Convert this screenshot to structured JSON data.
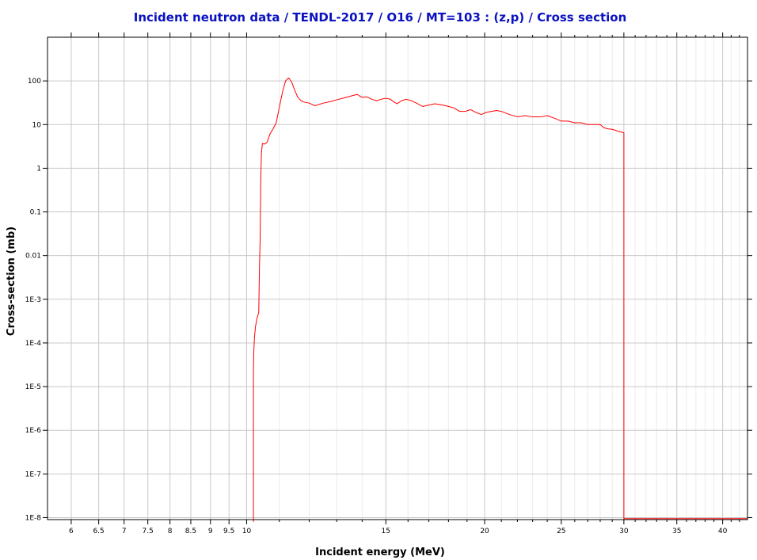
{
  "chart_data": {
    "type": "line",
    "title": "Incident neutron data / TENDL-2017 / O16 / MT=103 : (z,p) / Cross section",
    "xlabel": "Incident energy (MeV)",
    "ylabel": "Cross-section (mb)",
    "x_scale": "log",
    "y_scale": "log",
    "xlim": [
      5.6,
      43
    ],
    "ylim": [
      9e-09,
      1000
    ],
    "grid": true,
    "x_ticks": [
      6,
      6.5,
      7,
      7.5,
      8,
      8.5,
      9,
      9.5,
      10,
      15,
      20,
      25,
      30,
      35,
      40
    ],
    "x_tick_labels": [
      "6",
      "6.5",
      "7",
      "7.5",
      "8",
      "8.5",
      "9",
      "9.5",
      "10",
      "15",
      "20",
      "25",
      "30",
      "35",
      "40"
    ],
    "x_minor_ticks": [
      11,
      12,
      13,
      14,
      16,
      17,
      18,
      19,
      21,
      22,
      23,
      24,
      26,
      27,
      28,
      29,
      31,
      32,
      33,
      34,
      36,
      37,
      38,
      39,
      41,
      42
    ],
    "y_ticks": [
      1e-08,
      1e-07,
      1e-06,
      1e-05,
      0.0001,
      0.001,
      0.01,
      0.1,
      1,
      10,
      100
    ],
    "y_tick_labels": [
      "1E-8",
      "1E-7",
      "1E-6",
      "1E-5",
      "1E-4",
      "1E-3",
      "0.01",
      "0.1",
      "1",
      "10",
      "100"
    ],
    "series": [
      {
        "color": "#ff0000",
        "x": [
          10.2,
          10.2,
          10.21,
          10.23,
          10.26,
          10.3,
          10.36,
          10.38,
          10.4,
          10.42,
          10.44,
          10.47,
          10.5,
          10.55,
          10.62,
          10.7,
          10.8,
          10.9,
          11.0,
          11.1,
          11.2,
          11.3,
          11.4,
          11.5,
          11.6,
          11.7,
          11.8,
          12.0,
          12.2,
          12.5,
          12.8,
          13.0,
          13.3,
          13.6,
          13.8,
          13.9,
          14.0,
          14.2,
          14.4,
          14.6,
          14.8,
          15.0,
          15.2,
          15.35,
          15.5,
          15.7,
          15.9,
          16.1,
          16.4,
          16.7,
          17.0,
          17.3,
          17.7,
          18.0,
          18.3,
          18.6,
          18.9,
          19.2,
          19.5,
          19.8,
          20.1,
          20.4,
          20.7,
          21.0,
          21.5,
          22.0,
          22.5,
          23.0,
          23.5,
          24.0,
          24.5,
          25.0,
          25.5,
          26.0,
          26.5,
          27.0,
          27.5,
          28.0,
          28.3,
          28.6,
          29.0,
          29.4,
          29.7,
          29.98,
          30.0,
          30.0,
          43.0
        ],
        "y": [
          8e-09,
          2e-05,
          6e-05,
          0.00013,
          0.00023,
          0.00035,
          0.0005,
          0.005,
          0.02,
          0.5,
          2.2,
          3.7,
          3.6,
          3.6,
          4.0,
          6.0,
          8.0,
          11,
          25,
          55,
          100,
          117,
          95,
          62,
          43,
          36,
          33,
          31,
          27,
          31,
          34,
          37,
          41,
          46,
          49,
          45,
          42,
          43,
          38,
          35,
          38,
          40,
          38,
          33,
          30,
          35,
          38,
          36,
          31,
          26,
          28,
          30,
          28,
          26,
          24,
          20,
          20,
          22,
          19,
          17,
          19,
          20,
          21,
          20,
          17,
          15,
          16,
          15,
          15,
          16,
          14,
          12,
          12,
          11,
          11,
          10,
          10,
          10,
          8.5,
          8.0,
          7.8,
          7.2,
          6.8,
          6.5,
          6.5,
          9.5e-09,
          9.5e-09
        ]
      }
    ]
  }
}
